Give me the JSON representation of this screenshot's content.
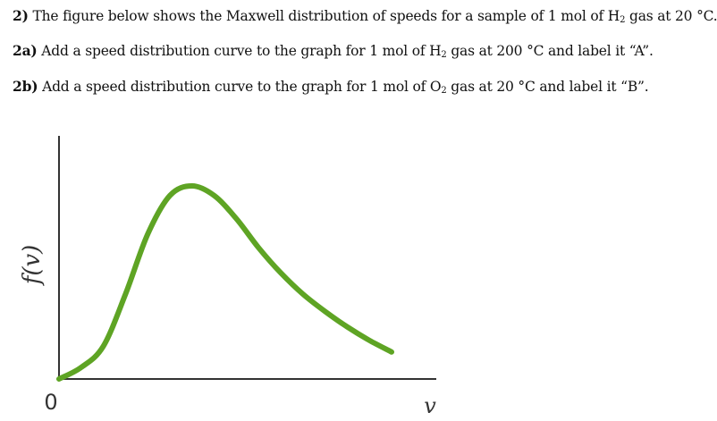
{
  "questions": {
    "q2": {
      "number": "2)",
      "text_before": "The figure below shows the Maxwell distribution of speeds for a sample of 1 mol of H",
      "sub": "2",
      "text_after": " gas at 20 °C."
    },
    "q2a": {
      "number": "2a)",
      "text_before": "Add a speed distribution curve to the graph for 1 mol of H",
      "sub": "2",
      "text_after": " gas at 200 °C and label it “A”."
    },
    "q2b": {
      "number": "2b)",
      "text_before": "Add a speed distribution curve to the graph for 1 mol of O",
      "sub": "2",
      "text_after": " gas at 20 °C and label it “B”."
    }
  },
  "chart_data": {
    "type": "line",
    "ylabel": "f(v)",
    "xlabel": "v",
    "origin_label": "0",
    "curve_color": "#5ea424",
    "series": [
      {
        "x": [
          0,
          0.2,
          0.4,
          0.6,
          0.8,
          1.0,
          1.2,
          1.4,
          1.6,
          1.8,
          2.0,
          2.2,
          2.4,
          2.6,
          2.8,
          3.0
        ],
        "values": [
          0,
          0.06,
          0.17,
          0.44,
          0.75,
          0.95,
          1.0,
          0.95,
          0.83,
          0.68,
          0.55,
          0.44,
          0.35,
          0.27,
          0.2,
          0.14
        ]
      }
    ]
  }
}
